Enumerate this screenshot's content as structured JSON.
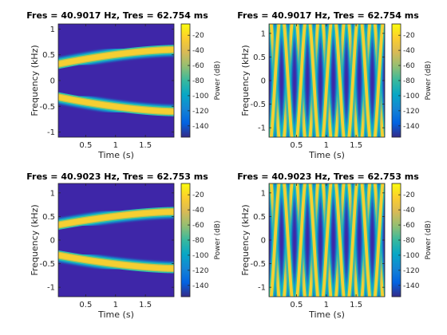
{
  "figure": {
    "type": "spectrogram-grid",
    "rows": 2,
    "cols": 2
  },
  "chart_data": [
    {
      "type": "heatmap",
      "title": "Fres = 40.9017 Hz, Tres = 62.754 ms",
      "xlabel": "Time (s)",
      "ylabel": "Frequency (kHz)",
      "xlim": [
        0.04,
        1.98
      ],
      "ylim": [
        -1.1,
        1.1
      ],
      "xticks": [
        0.5,
        1,
        1.5
      ],
      "xtick_labels": [
        "0.5",
        "1",
        "1.5"
      ],
      "yticks": [
        -1,
        -0.5,
        0,
        0.5,
        1
      ],
      "ytick_labels": [
        "-1",
        "-0.5",
        "0",
        "0.5",
        "1"
      ],
      "colorbar": {
        "label": "Power (dB)",
        "range": [
          -155,
          -5
        ],
        "ticks": [
          -140,
          -120,
          -100,
          -80,
          -60,
          -40,
          -20
        ],
        "tick_labels": [
          "-140",
          "-120",
          "-100",
          "-80",
          "-60",
          "-40",
          "-20"
        ]
      },
      "signal": "chirp",
      "chirp": {
        "start_khz": 0.32,
        "end_khz": 0.6,
        "mirrored": true
      }
    },
    {
      "type": "heatmap",
      "title": "Fres = 40.9017 Hz, Tres = 62.754 ms",
      "xlabel": "Time (s)",
      "ylabel": "Frequency (kHz)",
      "xlim": [
        0.04,
        1.98
      ],
      "ylim": [
        -1.2,
        1.2
      ],
      "xticks": [
        0.5,
        1,
        1.5
      ],
      "xtick_labels": [
        "0.5",
        "1",
        "1.5"
      ],
      "yticks": [
        -1,
        -0.5,
        0,
        0.5,
        1
      ],
      "ytick_labels": [
        "-1",
        "-0.5",
        "0",
        "0.5",
        "1"
      ],
      "colorbar": {
        "label": "Power (dB)",
        "range": [
          -155,
          -5
        ],
        "ticks": [
          -140,
          -120,
          -100,
          -80,
          -60,
          -40,
          -20
        ],
        "tick_labels": [
          "-140",
          "-120",
          "-100",
          "-80",
          "-60",
          "-40",
          "-20"
        ]
      },
      "signal": "sinusoidal-fm",
      "fm": {
        "center_khz": 0,
        "deviation_khz": 1.5,
        "rate_hz": 2.3
      }
    },
    {
      "type": "heatmap",
      "title": "Fres = 40.9023 Hz, Tres = 62.753 ms",
      "xlabel": "Time (s)",
      "ylabel": "Frequency (kHz)",
      "xlim": [
        0.04,
        1.98
      ],
      "ylim": [
        -1.2,
        1.2
      ],
      "xticks": [
        0.5,
        1,
        1.5
      ],
      "xtick_labels": [
        "0.5",
        "1",
        "1.5"
      ],
      "yticks": [
        -1,
        -0.5,
        0,
        0.5,
        1
      ],
      "ytick_labels": [
        "-1",
        "-0.5",
        "0",
        "0.5",
        "1"
      ],
      "colorbar": {
        "label": "Power (dB)",
        "range": [
          -155,
          -5
        ],
        "ticks": [
          -140,
          -120,
          -100,
          -80,
          -60,
          -40,
          -20
        ],
        "tick_labels": [
          "-140",
          "-120",
          "-100",
          "-80",
          "-60",
          "-40",
          "-20"
        ]
      },
      "signal": "chirp",
      "chirp": {
        "start_khz": 0.32,
        "end_khz": 0.6,
        "mirrored": true
      }
    },
    {
      "type": "heatmap",
      "title": "Fres = 40.9023 Hz, Tres = 62.753 ms",
      "xlabel": "Time (s)",
      "ylabel": "Frequency (kHz)",
      "xlim": [
        0.04,
        1.98
      ],
      "ylim": [
        -1.2,
        1.2
      ],
      "xticks": [
        0.5,
        1,
        1.5
      ],
      "xtick_labels": [
        "0.5",
        "1",
        "1.5"
      ],
      "yticks": [
        -1,
        -0.5,
        0,
        0.5,
        1
      ],
      "ytick_labels": [
        "-1",
        "-0.5",
        "0",
        "0.5",
        "1"
      ],
      "colorbar": {
        "label": "Power (dB)",
        "range": [
          -155,
          -5
        ],
        "ticks": [
          -140,
          -120,
          -100,
          -80,
          -60,
          -40,
          -20
        ],
        "tick_labels": [
          "-140",
          "-120",
          "-100",
          "-80",
          "-60",
          "-40",
          "-20"
        ]
      },
      "signal": "sinusoidal-fm",
      "fm": {
        "center_khz": 0,
        "deviation_khz": 1.5,
        "rate_hz": 2.3
      }
    }
  ]
}
